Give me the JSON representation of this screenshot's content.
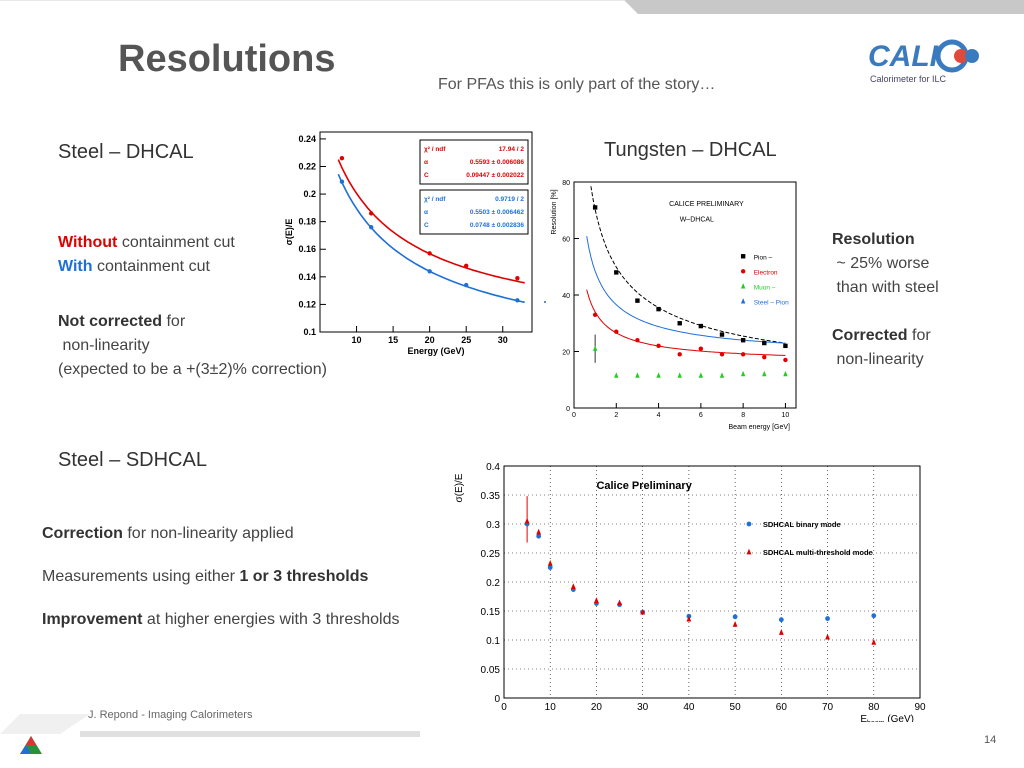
{
  "slide": {
    "title": "Resolutions",
    "subtitle": "For PFAs this is only part of the story…",
    "logo_text": "CALICE",
    "logo_caption": "Calorimeter for ILC",
    "footer": "J. Repond - Imaging Calorimeters",
    "page_number": "14"
  },
  "left": {
    "heading": "Steel – DHCAL",
    "without_word": "Without",
    "without_rest": " containment cut",
    "with_word": "With",
    "with_rest": " containment cut",
    "not_corrected": "Not corrected",
    "for_word": " for",
    "nonlin": " non-linearity",
    "expected": "(expected to be a +(3±2)% correction)"
  },
  "right": {
    "heading": "Tungsten – DHCAL",
    "resolution": "Resolution",
    "worse1": " ~ 25% worse",
    "worse2": " than with steel",
    "corrected": "Corrected",
    "for_word": " for",
    "nonlin": " non-linearity"
  },
  "bottom": {
    "heading": "Steel – SDHCAL",
    "correction": "Correction",
    "correction_rest": " for non-linearity applied",
    "measure": "Measurements using either ",
    "measure_bold": "1 or 3 thresholds",
    "improvement": "Improvement",
    "improvement_rest": " at higher energies with 3 thresholds"
  },
  "colors": {
    "red": "#e00000",
    "blue": "#1f6fd8",
    "green": "#22cc22",
    "black": "#000000"
  },
  "chart_data": [
    {
      "type": "scatter",
      "xlabel": "Energy (GeV)",
      "ylabel": "σ(E)/E",
      "xlim": [
        5,
        34
      ],
      "ylim": [
        0.1,
        0.245
      ],
      "xticks": [
        10,
        15,
        20,
        25,
        30
      ],
      "yticks": [
        0.1,
        0.12,
        0.14,
        0.16,
        0.18,
        0.2,
        0.22,
        0.24
      ],
      "series": [
        {
          "color": "red",
          "x": [
            8,
            12,
            20,
            25,
            32
          ],
          "y": [
            0.226,
            0.186,
            0.157,
            0.148,
            0.139
          ]
        },
        {
          "color": "blue",
          "x": [
            8,
            12,
            20,
            25,
            32
          ],
          "y": [
            0.209,
            0.176,
            0.144,
            0.134,
            0.123
          ]
        }
      ],
      "fitbox1": {
        "label_ndf": "χ² / ndf",
        "ndf": "17.94 / 2",
        "label_a": "α",
        "a": "0.5593 ± 0.006086",
        "label_c": "C",
        "c": "0.09447 ± 0.002022"
      },
      "fitbox2": {
        "label_ndf": "χ² / ndf",
        "ndf": "0.9719 / 2",
        "label_a": "α",
        "a": "0.5503 ± 0.006462",
        "label_c": "C",
        "c": "0.0748 ± 0.002836"
      }
    },
    {
      "type": "scatter",
      "xlabel": "Beam energy [GeV]",
      "ylabel": "Resolution [%]",
      "title": "CALICE PRELIMINARY",
      "subtitle": "W–DHCAL",
      "xlim": [
        0,
        10.5
      ],
      "ylim": [
        0,
        80
      ],
      "xticks": [
        0,
        2,
        4,
        6,
        8,
        10
      ],
      "yticks": [
        0,
        20,
        40,
        60,
        80
      ],
      "series": [
        {
          "name": "Pion –",
          "color": "black",
          "marker": "square",
          "x": [
            1,
            2,
            3,
            4,
            5,
            6,
            7,
            8,
            9,
            10
          ],
          "y": [
            71,
            48,
            38,
            35,
            30,
            29,
            26,
            24,
            23,
            22
          ]
        },
        {
          "name": "Electron",
          "color": "red",
          "marker": "circle",
          "x": [
            1,
            2,
            3,
            4,
            5,
            6,
            7,
            8,
            9,
            10
          ],
          "y": [
            33,
            27,
            24,
            22,
            19,
            21,
            19,
            19,
            18,
            17
          ]
        },
        {
          "name": "Muon –",
          "color": "green",
          "marker": "triangle",
          "x": [
            1,
            2,
            3,
            4,
            5,
            6,
            7,
            8,
            9,
            10
          ],
          "y": [
            21,
            11.5,
            11.5,
            11.5,
            11.5,
            11.5,
            11.5,
            12,
            12,
            12
          ]
        },
        {
          "name": "Steel – Pion",
          "color": "blue",
          "marker": "triangle",
          "x": [],
          "y": []
        }
      ]
    },
    {
      "type": "scatter",
      "title": "Calice Preliminary",
      "xlabel": "E_beam (GeV)",
      "ylabel": "σ(E)/E",
      "xlim": [
        0,
        90
      ],
      "ylim": [
        0,
        0.4
      ],
      "xticks": [
        0,
        10,
        20,
        30,
        40,
        50,
        60,
        70,
        80,
        90
      ],
      "yticks": [
        0,
        0.05,
        0.1,
        0.15,
        0.2,
        0.25,
        0.3,
        0.35,
        0.4
      ],
      "series": [
        {
          "name": "SDHCAL binary mode",
          "color": "blue",
          "marker": "circle",
          "x": [
            5,
            7.5,
            10,
            15,
            20,
            25,
            30,
            40,
            50,
            60,
            70,
            80
          ],
          "y": [
            0.3,
            0.279,
            0.225,
            0.187,
            0.163,
            0.161,
            0.148,
            0.141,
            0.14,
            0.135,
            0.137,
            0.142
          ]
        },
        {
          "name": "SDHCAL multi-threshold mode",
          "color": "red",
          "marker": "triangle",
          "x": [
            5,
            7.5,
            10,
            15,
            20,
            25,
            30,
            40,
            50,
            60,
            70,
            80
          ],
          "y": [
            0.305,
            0.286,
            0.232,
            0.192,
            0.168,
            0.164,
            0.148,
            0.136,
            0.127,
            0.113,
            0.105,
            0.096
          ]
        }
      ]
    }
  ]
}
